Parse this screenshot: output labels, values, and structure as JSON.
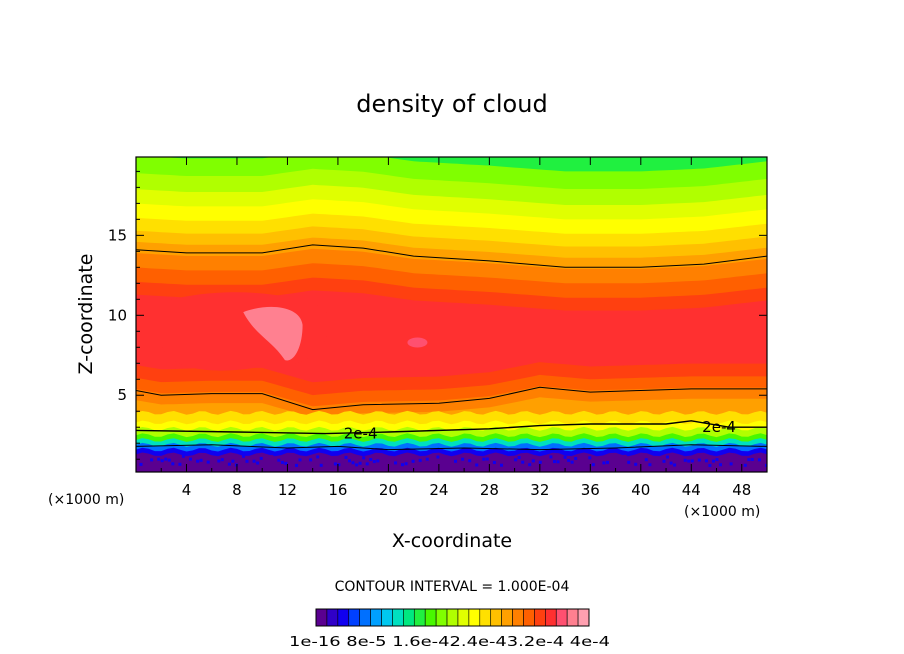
{
  "chart_data": {
    "type": "heatmap",
    "title": "density of cloud",
    "xlabel": "X-coordinate",
    "ylabel": "Z-coordinate",
    "x_unit_left": "(×1000 m)",
    "x_unit_right": "(×1000 m)",
    "xlim": [
      0,
      50
    ],
    "ylim": [
      0.2,
      19.9
    ],
    "xticks": [
      4,
      8,
      12,
      16,
      20,
      24,
      28,
      32,
      36,
      40,
      44,
      48
    ],
    "yticks": [
      5,
      10,
      15
    ],
    "contour_interval_text": "CONTOUR INTERVAL = 1.000E-04",
    "contour_labels": [
      {
        "text": "2e-4",
        "x": 17.8,
        "z": 2.6
      },
      {
        "text": "2e-4",
        "x": 46.2,
        "z": 3.0
      }
    ],
    "contour_lines": [
      {
        "level": "upper",
        "points": [
          [
            0,
            14.1
          ],
          [
            4,
            13.9
          ],
          [
            10,
            13.9
          ],
          [
            14,
            14.4
          ],
          [
            18,
            14.2
          ],
          [
            22,
            13.7
          ],
          [
            28,
            13.4
          ],
          [
            34,
            13.0
          ],
          [
            40,
            13.0
          ],
          [
            45,
            13.2
          ],
          [
            50,
            13.7
          ]
        ]
      },
      {
        "level": "lower",
        "points": [
          [
            0,
            5.3
          ],
          [
            2,
            5.0
          ],
          [
            6,
            5.1
          ],
          [
            10,
            5.1
          ],
          [
            14,
            4.1
          ],
          [
            18,
            4.4
          ],
          [
            24,
            4.5
          ],
          [
            28,
            4.8
          ],
          [
            32,
            5.5
          ],
          [
            36,
            5.2
          ],
          [
            40,
            5.3
          ],
          [
            44,
            5.4
          ],
          [
            50,
            5.4
          ]
        ]
      },
      {
        "level": "2e-4",
        "points": [
          [
            0,
            2.8
          ],
          [
            8,
            2.7
          ],
          [
            15,
            2.6
          ],
          [
            20,
            2.7
          ],
          [
            28,
            2.9
          ],
          [
            32,
            3.1
          ],
          [
            36,
            3.2
          ],
          [
            42,
            3.2
          ],
          [
            44,
            3.4
          ],
          [
            47,
            3.0
          ],
          [
            50,
            3.0
          ]
        ]
      },
      {
        "level": "base",
        "points": [
          [
            0,
            1.8
          ],
          [
            6,
            1.9
          ],
          [
            12,
            1.7
          ],
          [
            16,
            1.8
          ],
          [
            20,
            1.6
          ],
          [
            26,
            1.7
          ],
          [
            32,
            1.6
          ],
          [
            38,
            1.7
          ],
          [
            44,
            1.9
          ],
          [
            50,
            1.8
          ]
        ]
      }
    ],
    "palette": [
      "#5a0090",
      "#3000c8",
      "#1000f0",
      "#0040ff",
      "#0070ff",
      "#00a0ff",
      "#00c8f0",
      "#00e0c0",
      "#00e880",
      "#20f040",
      "#48f800",
      "#80ff00",
      "#b0ff00",
      "#e0ff00",
      "#ffff00",
      "#ffe000",
      "#ffc000",
      "#ffa000",
      "#ff8000",
      "#ff6000",
      "#ff4010",
      "#ff3030",
      "#ff5070",
      "#ff8090",
      "#ffa0b0"
    ],
    "colorbar_labels": [
      "1e-16",
      "8e-5",
      "1.6e-4",
      "2.4e-4",
      "3.2e-4",
      "4e-4"
    ],
    "colorbar_text": "1e-16 8e-5 1.6e-42.4e-43.2e-4 4e-4"
  }
}
